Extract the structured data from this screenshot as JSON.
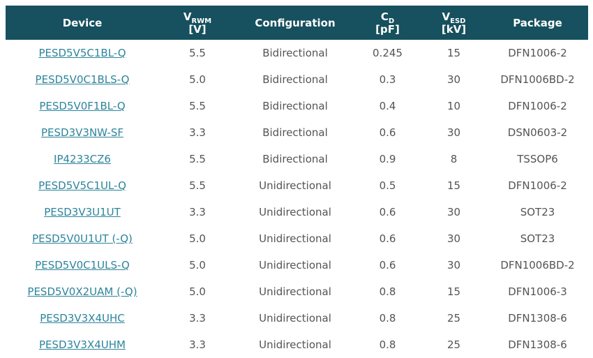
{
  "colors": {
    "header_bg": "#17505e",
    "header_text": "#ffffff",
    "link": "#2d849c",
    "body_text": "#545454"
  },
  "table": {
    "columns": [
      {
        "key": "device",
        "label": "Device"
      },
      {
        "key": "vrwm",
        "main": "V",
        "sub": "RWM",
        "unit": "[V]"
      },
      {
        "key": "configuration",
        "label": "Configuration"
      },
      {
        "key": "cd",
        "main": "C",
        "sub": "D",
        "unit": "[pF]"
      },
      {
        "key": "vesd",
        "main": "V",
        "sub": "ESD",
        "unit": "[kV]"
      },
      {
        "key": "package",
        "label": "Package"
      }
    ],
    "rows": [
      [
        "PESD5V5C1BL-Q",
        "5.5",
        "Bidirectional",
        "0.245",
        "15",
        "DFN1006-2"
      ],
      [
        "PESD5V0C1BLS-Q",
        "5.0",
        "Bidirectional",
        "0.3",
        "30",
        "DFN1006BD-2"
      ],
      [
        "PESD5V0F1BL-Q",
        "5.5",
        "Bidirectional",
        "0.4",
        "10",
        "DFN1006-2"
      ],
      [
        "PESD3V3NW-SF",
        "3.3",
        "Bidirectional",
        "0.6",
        "30",
        "DSN0603-2"
      ],
      [
        "IP4233CZ6",
        "5.5",
        "Bidirectional",
        "0.9",
        "8",
        "TSSOP6"
      ],
      [
        "PESD5V5C1UL-Q",
        "5.5",
        "Unidirectional",
        "0.5",
        "15",
        "DFN1006-2"
      ],
      [
        "PESD3V3U1UT",
        "3.3",
        "Unidirectional",
        "0.6",
        "30",
        "SOT23"
      ],
      [
        "PESD5V0U1UT (-Q)",
        "5.0",
        "Unidirectional",
        "0.6",
        "30",
        "SOT23"
      ],
      [
        "PESD5V0C1ULS-Q",
        "5.0",
        "Unidirectional",
        "0.6",
        "30",
        "DFN1006BD-2"
      ],
      [
        "PESD5V0X2UAM (-Q)",
        "5.0",
        "Unidirectional",
        "0.8",
        "15",
        "DFN1006-3"
      ],
      [
        "PESD3V3X4UHC",
        "3.3",
        "Unidirectional",
        "0.8",
        "25",
        "DFN1308-6"
      ],
      [
        "PESD3V3X4UHM",
        "3.3",
        "Unidirectional",
        "0.8",
        "25",
        "DFN1308-6"
      ]
    ]
  }
}
